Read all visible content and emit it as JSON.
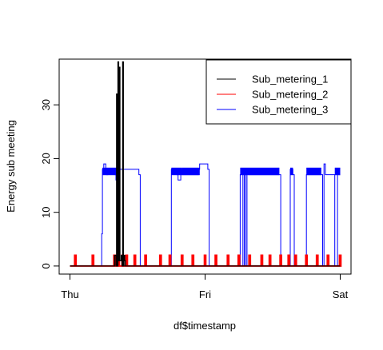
{
  "chart_data": {
    "type": "line",
    "title": "",
    "xlabel": "df$timestamp",
    "ylabel": "Energy sub meeting",
    "x_tick_labels": [
      "Thu",
      "Fri",
      "Sat"
    ],
    "x_tick_days": [
      0,
      1,
      2
    ],
    "xlim_days": [
      -0.08,
      2.08
    ],
    "ylim": [
      -1.5,
      38.5
    ],
    "y_ticks": [
      0,
      10,
      20,
      30
    ],
    "legend_position": "top-right",
    "grid": false,
    "series": [
      {
        "name": "Sub_metering_1",
        "color": "#000000",
        "x_days": [
          0.0,
          0.32,
          0.33,
          0.34,
          0.345,
          0.35,
          0.355,
          0.36,
          0.365,
          0.37,
          0.38,
          0.385,
          0.39,
          0.395,
          0.4,
          0.405,
          0.41,
          2.0
        ],
        "values": [
          0,
          0,
          2,
          0,
          32,
          0,
          38,
          1,
          37,
          1,
          2,
          0,
          38,
          0,
          2,
          1,
          0,
          0
        ]
      },
      {
        "name": "Sub_metering_2",
        "color": "#ff0000",
        "pulse_days": [
          0.04,
          0.17,
          0.33,
          0.36,
          0.39,
          0.42,
          0.48,
          0.56,
          0.67,
          0.74,
          0.83,
          0.91,
          1.0,
          1.08,
          1.17,
          1.25,
          1.33,
          1.42,
          1.48,
          1.56,
          1.62,
          1.67,
          1.75,
          1.83,
          1.91,
          2.0
        ],
        "pulse_value": 2
      },
      {
        "name": "Sub_metering_3",
        "color": "#0000ff",
        "x_days": [
          0.0,
          0.23,
          0.235,
          0.24,
          0.25,
          0.265,
          0.27,
          0.28,
          0.33,
          0.34,
          0.35,
          0.51,
          0.52,
          0.74,
          0.75,
          0.79,
          0.8,
          0.82,
          0.83,
          0.95,
          0.96,
          1.02,
          1.03,
          1.25,
          1.26,
          1.27,
          1.28,
          1.29,
          1.3,
          1.31,
          1.32,
          1.55,
          1.56,
          1.62,
          1.63,
          1.65,
          1.66,
          1.74,
          1.75,
          1.86,
          1.87,
          1.88,
          1.89,
          1.95,
          1.96,
          1.98,
          1.99,
          2.0
        ],
        "values": [
          0,
          0,
          6,
          18,
          19,
          18,
          17,
          18,
          17,
          16,
          18,
          17,
          0,
          0,
          18,
          17,
          16,
          18,
          17,
          18,
          19,
          18,
          0,
          0,
          17,
          18,
          0,
          17,
          0,
          18,
          17,
          17,
          0,
          0,
          18,
          17,
          0,
          0,
          17,
          17,
          0,
          19,
          17,
          17,
          0,
          18,
          17,
          17
        ]
      }
    ]
  }
}
